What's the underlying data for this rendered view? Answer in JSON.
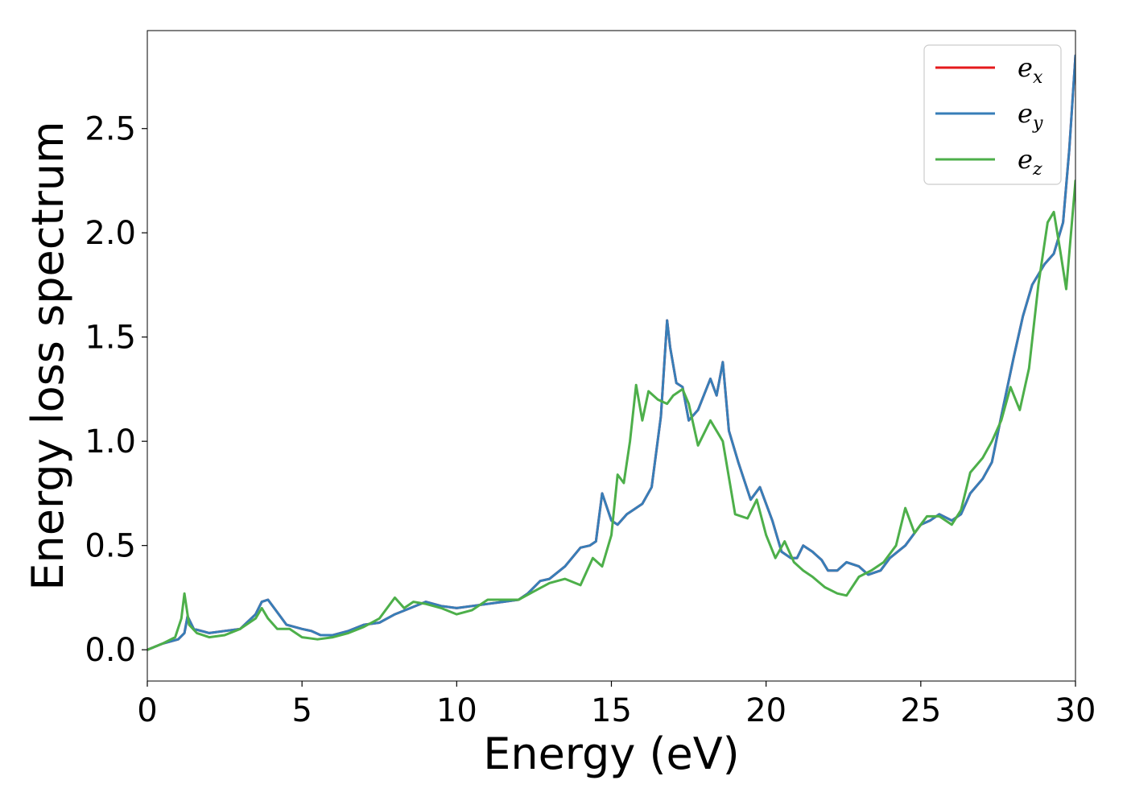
{
  "chart_data": {
    "type": "line",
    "title": "",
    "xlabel": "Energy (eV)",
    "ylabel": "Energy loss spectrum",
    "xlim": [
      0,
      30
    ],
    "ylim": [
      -0.15,
      2.97
    ],
    "xticks": [
      0,
      5,
      10,
      15,
      20,
      25,
      30
    ],
    "xtick_labels": [
      "0",
      "5",
      "10",
      "15",
      "20",
      "25",
      "30"
    ],
    "yticks": [
      0.0,
      0.5,
      1.0,
      1.5,
      2.0,
      2.5
    ],
    "ytick_labels": [
      "0.0",
      "0.5",
      "1.0",
      "1.5",
      "2.0",
      "2.5"
    ],
    "grid": false,
    "legend_position": "top-right",
    "series": [
      {
        "name": "e_x",
        "legend_base": "e",
        "legend_sub": "x",
        "color": "#e41a1c",
        "x": [
          0,
          0.5,
          1,
          1.2,
          1.3,
          1.5,
          2,
          2.5,
          3,
          3.5,
          3.7,
          3.9,
          4.2,
          4.5,
          5,
          5.3,
          5.6,
          6,
          6.5,
          7,
          7.5,
          8,
          8.5,
          9,
          9.5,
          10,
          10.5,
          11,
          11.5,
          12,
          12.3,
          12.7,
          13,
          13.5,
          14,
          14.3,
          14.5,
          14.7,
          15,
          15.2,
          15.5,
          16,
          16.3,
          16.6,
          16.8,
          16.9,
          17.1,
          17.3,
          17.5,
          17.8,
          18.2,
          18.4,
          18.6,
          18.8,
          19.1,
          19.5,
          19.8,
          20.2,
          20.5,
          20.8,
          21,
          21.2,
          21.5,
          21.8,
          22,
          22.3,
          22.6,
          23,
          23.3,
          23.7,
          24,
          24.5,
          25,
          25.3,
          25.6,
          26,
          26.3,
          26.6,
          27,
          27.3,
          27.6,
          28,
          28.3,
          28.6,
          29,
          29.3,
          29.6,
          29.8,
          30
        ],
        "y": [
          0,
          0.03,
          0.05,
          0.08,
          0.16,
          0.1,
          0.08,
          0.09,
          0.1,
          0.17,
          0.23,
          0.24,
          0.18,
          0.12,
          0.1,
          0.09,
          0.07,
          0.07,
          0.09,
          0.12,
          0.13,
          0.17,
          0.2,
          0.23,
          0.21,
          0.2,
          0.21,
          0.22,
          0.23,
          0.24,
          0.27,
          0.33,
          0.34,
          0.4,
          0.49,
          0.5,
          0.52,
          0.75,
          0.62,
          0.6,
          0.65,
          0.7,
          0.78,
          1.12,
          1.58,
          1.45,
          1.28,
          1.26,
          1.1,
          1.15,
          1.3,
          1.22,
          1.38,
          1.05,
          0.9,
          0.72,
          0.78,
          0.62,
          0.47,
          0.44,
          0.44,
          0.5,
          0.47,
          0.43,
          0.38,
          0.38,
          0.42,
          0.4,
          0.36,
          0.38,
          0.44,
          0.5,
          0.6,
          0.62,
          0.65,
          0.62,
          0.65,
          0.75,
          0.82,
          0.9,
          1.12,
          1.4,
          1.6,
          1.75,
          1.85,
          1.9,
          2.05,
          2.4,
          2.85
        ]
      },
      {
        "name": "e_y",
        "legend_base": "e",
        "legend_sub": "y",
        "color": "#377eb8",
        "x": [
          0,
          0.5,
          1,
          1.2,
          1.3,
          1.5,
          2,
          2.5,
          3,
          3.5,
          3.7,
          3.9,
          4.2,
          4.5,
          5,
          5.3,
          5.6,
          6,
          6.5,
          7,
          7.5,
          8,
          8.5,
          9,
          9.5,
          10,
          10.5,
          11,
          11.5,
          12,
          12.3,
          12.7,
          13,
          13.5,
          14,
          14.3,
          14.5,
          14.7,
          15,
          15.2,
          15.5,
          16,
          16.3,
          16.6,
          16.8,
          16.9,
          17.1,
          17.3,
          17.5,
          17.8,
          18.2,
          18.4,
          18.6,
          18.8,
          19.1,
          19.5,
          19.8,
          20.2,
          20.5,
          20.8,
          21,
          21.2,
          21.5,
          21.8,
          22,
          22.3,
          22.6,
          23,
          23.3,
          23.7,
          24,
          24.5,
          25,
          25.3,
          25.6,
          26,
          26.3,
          26.6,
          27,
          27.3,
          27.6,
          28,
          28.3,
          28.6,
          29,
          29.3,
          29.6,
          29.8,
          30
        ],
        "y": [
          0,
          0.03,
          0.05,
          0.08,
          0.16,
          0.1,
          0.08,
          0.09,
          0.1,
          0.17,
          0.23,
          0.24,
          0.18,
          0.12,
          0.1,
          0.09,
          0.07,
          0.07,
          0.09,
          0.12,
          0.13,
          0.17,
          0.2,
          0.23,
          0.21,
          0.2,
          0.21,
          0.22,
          0.23,
          0.24,
          0.27,
          0.33,
          0.34,
          0.4,
          0.49,
          0.5,
          0.52,
          0.75,
          0.62,
          0.6,
          0.65,
          0.7,
          0.78,
          1.12,
          1.58,
          1.45,
          1.28,
          1.26,
          1.1,
          1.15,
          1.3,
          1.22,
          1.38,
          1.05,
          0.9,
          0.72,
          0.78,
          0.62,
          0.47,
          0.44,
          0.44,
          0.5,
          0.47,
          0.43,
          0.38,
          0.38,
          0.42,
          0.4,
          0.36,
          0.38,
          0.44,
          0.5,
          0.6,
          0.62,
          0.65,
          0.62,
          0.65,
          0.75,
          0.82,
          0.9,
          1.12,
          1.4,
          1.6,
          1.75,
          1.85,
          1.9,
          2.05,
          2.4,
          2.85
        ]
      },
      {
        "name": "e_z",
        "legend_base": "e",
        "legend_sub": "z",
        "color": "#4daf4a",
        "x": [
          0,
          0.5,
          0.9,
          1.1,
          1.2,
          1.35,
          1.6,
          2,
          2.5,
          3,
          3.5,
          3.7,
          3.9,
          4.2,
          4.6,
          5,
          5.5,
          6,
          6.5,
          7,
          7.5,
          8,
          8.3,
          8.6,
          9,
          9.5,
          10,
          10.5,
          11,
          11.5,
          12,
          12.5,
          13,
          13.5,
          14,
          14.4,
          14.7,
          15,
          15.2,
          15.4,
          15.6,
          15.8,
          16,
          16.2,
          16.5,
          16.8,
          17,
          17.3,
          17.5,
          17.8,
          18.2,
          18.6,
          19,
          19.4,
          19.7,
          20,
          20.3,
          20.6,
          20.9,
          21.2,
          21.5,
          21.9,
          22.3,
          22.6,
          23,
          23.4,
          23.8,
          24.2,
          24.5,
          24.8,
          25.2,
          25.6,
          26,
          26.3,
          26.6,
          27,
          27.3,
          27.6,
          27.9,
          28.2,
          28.5,
          28.8,
          29.1,
          29.3,
          29.5,
          29.7,
          30
        ],
        "y": [
          0,
          0.03,
          0.06,
          0.15,
          0.27,
          0.12,
          0.08,
          0.06,
          0.07,
          0.1,
          0.15,
          0.2,
          0.15,
          0.1,
          0.1,
          0.06,
          0.05,
          0.06,
          0.08,
          0.11,
          0.15,
          0.25,
          0.2,
          0.23,
          0.22,
          0.2,
          0.17,
          0.19,
          0.24,
          0.24,
          0.24,
          0.28,
          0.32,
          0.34,
          0.31,
          0.44,
          0.4,
          0.55,
          0.84,
          0.8,
          1.0,
          1.27,
          1.1,
          1.24,
          1.2,
          1.18,
          1.22,
          1.25,
          1.18,
          0.98,
          1.1,
          1.0,
          0.65,
          0.63,
          0.72,
          0.55,
          0.44,
          0.52,
          0.42,
          0.38,
          0.35,
          0.3,
          0.27,
          0.26,
          0.35,
          0.38,
          0.42,
          0.5,
          0.68,
          0.56,
          0.64,
          0.64,
          0.6,
          0.67,
          0.85,
          0.92,
          1.0,
          1.1,
          1.26,
          1.15,
          1.35,
          1.75,
          2.05,
          2.1,
          1.92,
          1.73,
          2.25
        ]
      }
    ]
  }
}
